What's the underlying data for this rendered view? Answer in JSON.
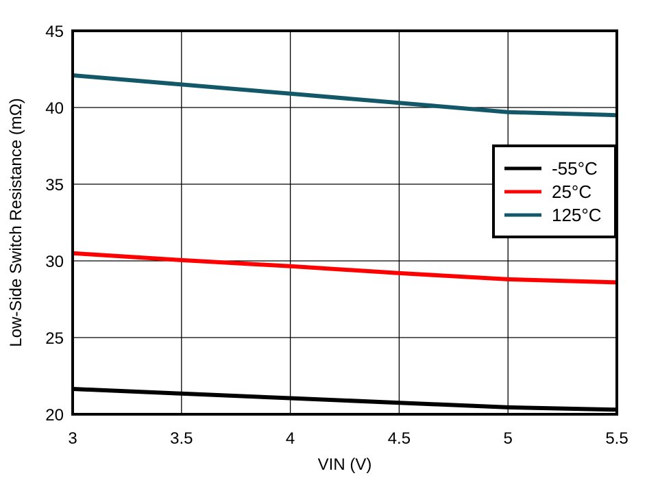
{
  "chart_data": {
    "type": "line",
    "title": "",
    "xlabel": "VIN (V)",
    "ylabel": "Low-Side Switch Resistance (mΩ)",
    "xlim": [
      3,
      5.5
    ],
    "ylim": [
      20,
      45
    ],
    "x_ticks": [
      "3",
      "3.5",
      "4",
      "4.5",
      "5",
      "5.5"
    ],
    "y_ticks": [
      "20",
      "25",
      "30",
      "35",
      "40",
      "45"
    ],
    "grid": true,
    "legend_position": "right-upper-middle",
    "x": [
      3,
      3.5,
      4,
      4.5,
      5,
      5.5
    ],
    "series": [
      {
        "name": "-55°C",
        "color": "#000000",
        "values": [
          21.65,
          21.35,
          21.05,
          20.75,
          20.45,
          20.3
        ]
      },
      {
        "name": "25°C",
        "color": "#ff0000",
        "values": [
          30.5,
          30.05,
          29.65,
          29.2,
          28.8,
          28.6
        ]
      },
      {
        "name": "125°C",
        "color": "#135868",
        "values": [
          42.1,
          41.5,
          40.9,
          40.3,
          39.7,
          39.5
        ]
      }
    ]
  },
  "legend": {
    "items": [
      {
        "label": "-55°C",
        "color": "#000000"
      },
      {
        "label": "25°C",
        "color": "#ff0000"
      },
      {
        "label": "125°C",
        "color": "#135868"
      }
    ]
  }
}
